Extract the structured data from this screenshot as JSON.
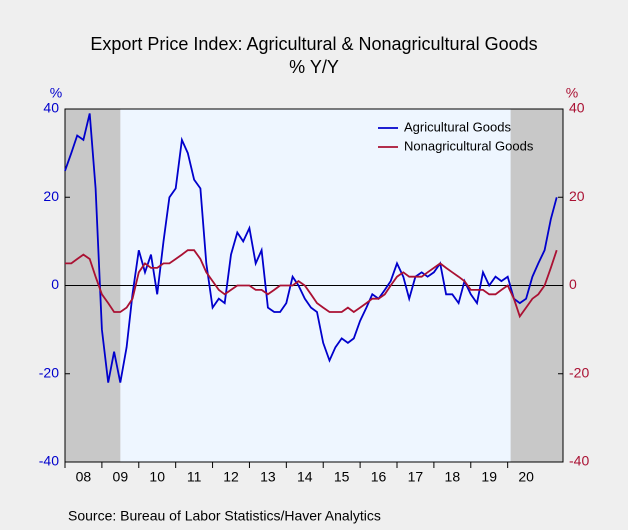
{
  "chart_data": {
    "type": "line",
    "title": "Export Price Index: Agricultural & Nonagricultural Goods",
    "subtitle": "% Y/Y",
    "ylabel": "%",
    "y2label": "%",
    "source": "Source:  Bureau of Labor Statistics/Haver Analytics",
    "xlim": [
      2008,
      2021.5
    ],
    "xticks": [
      {
        "value": 2008,
        "label": "08"
      },
      {
        "value": 2009,
        "label": "09"
      },
      {
        "value": 2010,
        "label": "10"
      },
      {
        "value": 2011,
        "label": "11"
      },
      {
        "value": 2012,
        "label": "12"
      },
      {
        "value": 2013,
        "label": "13"
      },
      {
        "value": 2014,
        "label": "14"
      },
      {
        "value": 2015,
        "label": "15"
      },
      {
        "value": 2016,
        "label": "16"
      },
      {
        "value": 2017,
        "label": "17"
      },
      {
        "value": 2018,
        "label": "18"
      },
      {
        "value": 2019,
        "label": "19"
      },
      {
        "value": 2020,
        "label": "20"
      }
    ],
    "ylim": [
      -40,
      40
    ],
    "yticks": [
      -40,
      -20,
      0,
      20,
      40
    ],
    "y2lim": [
      -40,
      40
    ],
    "y2ticks": [
      -40,
      -20,
      0,
      20,
      40
    ],
    "recessions": [
      [
        2008,
        2009.5
      ],
      [
        2020.08,
        2021.5
      ]
    ],
    "legend": "upper right",
    "x": [
      2008.0,
      2008.17,
      2008.33,
      2008.5,
      2008.67,
      2008.83,
      2009.0,
      2009.17,
      2009.33,
      2009.5,
      2009.67,
      2009.83,
      2010.0,
      2010.17,
      2010.33,
      2010.5,
      2010.67,
      2010.83,
      2011.0,
      2011.17,
      2011.33,
      2011.5,
      2011.67,
      2011.83,
      2012.0,
      2012.17,
      2012.33,
      2012.5,
      2012.67,
      2012.83,
      2013.0,
      2013.17,
      2013.33,
      2013.5,
      2013.67,
      2013.83,
      2014.0,
      2014.17,
      2014.33,
      2014.5,
      2014.67,
      2014.83,
      2015.0,
      2015.17,
      2015.33,
      2015.5,
      2015.67,
      2015.83,
      2016.0,
      2016.17,
      2016.33,
      2016.5,
      2016.67,
      2016.83,
      2017.0,
      2017.17,
      2017.33,
      2017.5,
      2017.67,
      2017.83,
      2018.0,
      2018.17,
      2018.33,
      2018.5,
      2018.67,
      2018.83,
      2019.0,
      2019.17,
      2019.33,
      2019.5,
      2019.67,
      2019.83,
      2020.0,
      2020.17,
      2020.33,
      2020.5,
      2020.67,
      2020.83,
      2021.0,
      2021.17,
      2021.33
    ],
    "series": [
      {
        "name": "Agricultural Goods",
        "color": "#0000cc",
        "values": [
          26,
          30,
          34,
          33,
          39,
          22,
          -10,
          -22,
          -15,
          -22,
          -14,
          -2,
          8,
          3,
          7,
          -2,
          10,
          20,
          22,
          33,
          30,
          24,
          22,
          5,
          -5,
          -3,
          -4,
          7,
          12,
          10,
          13,
          5,
          8,
          -5,
          -6,
          -6,
          -4,
          2,
          0,
          -3,
          -5,
          -6,
          -13,
          -17,
          -14,
          -12,
          -13,
          -12,
          -8,
          -5,
          -2,
          -3,
          -1,
          1,
          5,
          2,
          -3,
          2,
          3,
          2,
          3,
          5,
          -2,
          -2,
          -4,
          1,
          -2,
          -4,
          3,
          0,
          2,
          1,
          2,
          -3,
          -4,
          -3,
          2,
          5,
          8,
          15,
          20
        ]
      },
      {
        "name": "Nonagricultural Goods",
        "color": "#aa1133",
        "axis": "y2",
        "values": [
          5,
          5,
          6,
          7,
          6,
          2,
          -2,
          -4,
          -6,
          -6,
          -5,
          -3,
          3,
          5,
          4,
          4,
          5,
          5,
          6,
          7,
          8,
          8,
          6,
          3,
          1,
          -1,
          -2,
          -1,
          0,
          0,
          0,
          -1,
          -1,
          -2,
          -1,
          0,
          0,
          0,
          1,
          0,
          -2,
          -4,
          -5,
          -6,
          -6,
          -6,
          -5,
          -6,
          -5,
          -4,
          -3,
          -3,
          -2,
          0,
          2,
          3,
          2,
          2,
          2,
          3,
          4,
          5,
          4,
          3,
          2,
          1,
          -1,
          -1,
          -1,
          -2,
          -2,
          -1,
          0,
          -3,
          -7,
          -5,
          -3,
          -2,
          0,
          4,
          8
        ]
      }
    ]
  }
}
